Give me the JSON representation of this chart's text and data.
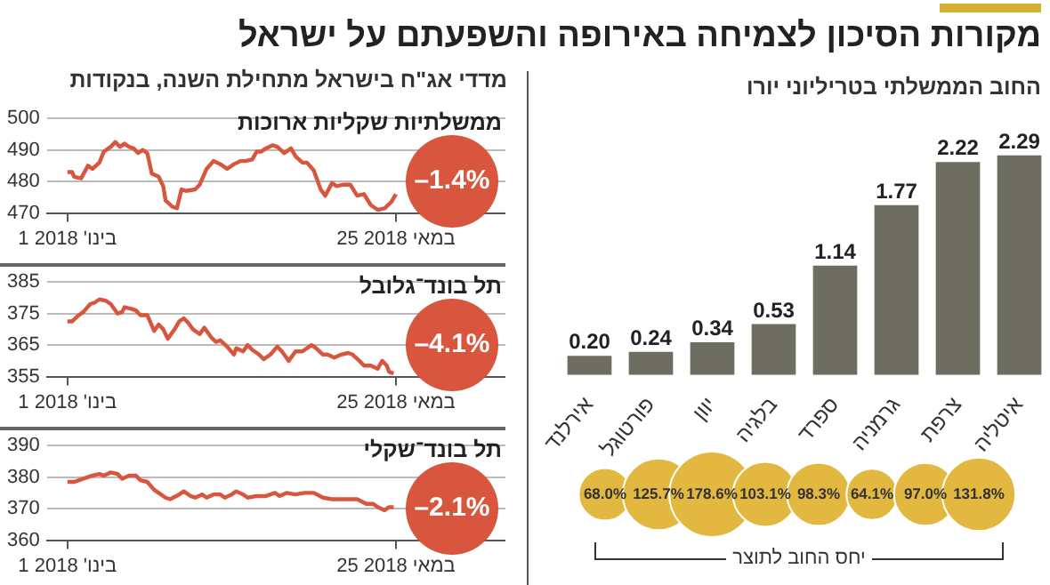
{
  "chart_data": [
    {
      "type": "bar",
      "title": "מקורות הסיכון לצמיחה באירופה והשפעתם על ישראל",
      "subtitle": "החוב הממשלתי בטריליוני יורו",
      "categories": [
        "אירלנד",
        "פורטוגל",
        "יוון",
        "בלגיה",
        "ספרד",
        "גרמניה",
        "צרפת",
        "איטליה"
      ],
      "values": [
        0.2,
        0.24,
        0.34,
        0.53,
        1.14,
        1.77,
        2.22,
        2.29
      ],
      "value_labels": [
        "0.20",
        "0.24",
        "0.34",
        "0.53",
        "1.14",
        "1.77",
        "2.22",
        "2.29"
      ],
      "color": "#6d6d61"
    },
    {
      "type": "other",
      "xlabel": "יחס החוב לתוצר",
      "categories": [
        null,
        null,
        null,
        null,
        null,
        null,
        null,
        null
      ],
      "values": [
        68.0,
        125.7,
        178.6,
        103.1,
        98.3,
        64.1,
        97.0,
        131.8
      ],
      "value_labels": [
        "68.0%",
        "125.7%",
        "178.6%",
        "103.1%",
        "98.3%",
        "64.1%",
        "97.0%",
        "131.8%"
      ],
      "color": "#e2b840"
    },
    {
      "type": "line",
      "title": "ממשלתיות שקליות ארוכות",
      "subtitle": "מדדי אג\"ח בישראל מתחילת השנה, בנקודות",
      "annotations": [
        "–1.4%"
      ],
      "x": [
        "2018-01-01",
        "2018-01-03",
        "2018-01-04",
        "2018-01-07",
        "2018-01-10",
        "2018-01-12",
        "2018-01-15",
        "2018-01-17",
        "2018-01-20",
        "2018-01-22",
        "2018-01-24",
        "2018-01-26",
        "2018-01-28",
        "2018-01-30",
        "2018-02-01",
        "2018-02-03",
        "2018-02-05",
        "2018-02-07",
        "2018-02-10",
        "2018-02-12",
        "2018-02-13",
        "2018-02-16",
        "2018-02-18",
        "2018-02-20",
        "2018-02-22",
        "2018-02-26",
        "2018-02-28",
        "2018-03-03",
        "2018-03-06",
        "2018-03-09",
        "2018-03-12",
        "2018-03-15",
        "2018-03-18",
        "2018-03-20",
        "2018-03-23",
        "2018-03-25",
        "2018-03-27",
        "2018-03-29",
        "2018-04-01",
        "2018-04-03",
        "2018-04-06",
        "2018-04-09",
        "2018-04-11",
        "2018-04-14",
        "2018-04-16",
        "2018-04-19",
        "2018-04-22",
        "2018-04-24",
        "2018-04-27",
        "2018-04-29",
        "2018-05-02",
        "2018-05-05",
        "2018-05-08",
        "2018-05-11",
        "2018-05-14",
        "2018-05-17",
        "2018-05-20",
        "2018-05-23",
        "2018-05-25"
      ],
      "series": [
        {
          "color": "#d8553e",
          "values": [
            483,
            483,
            481.5,
            481,
            485,
            484,
            486,
            489.5,
            491,
            492.5,
            491,
            492,
            491,
            490.5,
            489,
            490,
            489,
            482.5,
            481.5,
            478.5,
            474,
            472,
            471.5,
            477.5,
            477,
            477.5,
            479,
            484,
            486.5,
            485.5,
            484,
            485.5,
            486.5,
            486.5,
            487,
            489.5,
            489.5,
            490.5,
            491.5,
            491,
            489,
            490.5,
            488,
            486,
            486,
            483.5,
            477.5,
            475.5,
            479.5,
            478.5,
            479,
            479,
            475.5,
            476,
            472.5,
            471,
            471.5,
            473.5,
            476
          ]
        }
      ],
      "xlim": [
        "2017-12-23",
        "2018-07-12"
      ],
      "xticks": [
        {
          "value": "2018-01-01",
          "label": "1 בינו' 2018"
        },
        {
          "value": "2018-05-25",
          "label": "25 במאי 2018"
        }
      ],
      "ylim": [
        470,
        500
      ],
      "yticks": [
        470,
        480,
        490,
        500
      ],
      "grid": "y"
    },
    {
      "type": "line",
      "title": "תל בונד־גלובל",
      "annotations": [
        "–4.1%"
      ],
      "x": [
        "2018-01-01",
        "2018-01-03",
        "2018-01-06",
        "2018-01-08",
        "2018-01-11",
        "2018-01-13",
        "2018-01-15",
        "2018-01-18",
        "2018-01-20",
        "2018-01-23",
        "2018-01-25",
        "2018-01-26",
        "2018-01-29",
        "2018-01-31",
        "2018-02-02",
        "2018-02-05",
        "2018-02-08",
        "2018-02-10",
        "2018-02-12",
        "2018-02-14",
        "2018-02-17",
        "2018-02-19",
        "2018-02-21",
        "2018-02-23",
        "2018-02-25",
        "2018-02-28",
        "2018-03-02",
        "2018-03-05",
        "2018-03-07",
        "2018-03-09",
        "2018-03-12",
        "2018-03-15",
        "2018-03-16",
        "2018-03-19",
        "2018-03-21",
        "2018-03-23",
        "2018-03-26",
        "2018-03-28",
        "2018-03-31",
        "2018-04-03",
        "2018-04-05",
        "2018-04-08",
        "2018-04-11",
        "2018-04-14",
        "2018-04-18",
        "2018-04-20",
        "2018-04-23",
        "2018-04-25",
        "2018-04-28",
        "2018-05-01",
        "2018-05-04",
        "2018-05-06",
        "2018-05-09",
        "2018-05-11",
        "2018-05-14",
        "2018-05-17",
        "2018-05-19",
        "2018-05-21",
        "2018-05-22",
        "2018-05-24"
      ],
      "series": [
        {
          "color": "#d8553e",
          "values": [
            372.5,
            372.5,
            374.5,
            375.5,
            378,
            378.5,
            379.5,
            379,
            378,
            375,
            375.5,
            377,
            376.5,
            376,
            374.5,
            374.5,
            369.5,
            371.5,
            370,
            367,
            370,
            372.5,
            373.5,
            372,
            370,
            368.5,
            370.5,
            367.5,
            366,
            366.5,
            364.5,
            362,
            364,
            363,
            365,
            363.5,
            362,
            360.5,
            362,
            364.5,
            363,
            360,
            363,
            363,
            365,
            364,
            362,
            362,
            361,
            362,
            362.5,
            362,
            360,
            358.5,
            358.5,
            357.5,
            360,
            358.5,
            356.5,
            356
          ]
        }
      ],
      "xlim": [
        "2017-12-23",
        "2018-07-12"
      ],
      "xticks": [
        {
          "value": "2018-01-01",
          "label": "1 בינו' 2018"
        },
        {
          "value": "2018-05-25",
          "label": "25 במאי 2018"
        }
      ],
      "ylim": [
        355,
        385
      ],
      "yticks": [
        355,
        365,
        375,
        385
      ],
      "grid": "y"
    },
    {
      "type": "line",
      "title": "תל בונד־שקלי",
      "annotations": [
        "–2.1%"
      ],
      "x": [
        "2018-01-01",
        "2018-01-04",
        "2018-01-08",
        "2018-01-12",
        "2018-01-15",
        "2018-01-17",
        "2018-01-20",
        "2018-01-23",
        "2018-01-25",
        "2018-01-28",
        "2018-01-31",
        "2018-02-02",
        "2018-02-05",
        "2018-02-08",
        "2018-02-10",
        "2018-02-13",
        "2018-02-15",
        "2018-02-19",
        "2018-02-21",
        "2018-02-24",
        "2018-02-26",
        "2018-03-01",
        "2018-03-03",
        "2018-03-06",
        "2018-03-09",
        "2018-03-11",
        "2018-03-14",
        "2018-03-16",
        "2018-03-19",
        "2018-03-21",
        "2018-03-25",
        "2018-03-29",
        "2018-04-02",
        "2018-04-04",
        "2018-04-07",
        "2018-04-11",
        "2018-04-15",
        "2018-04-19",
        "2018-04-23",
        "2018-04-27",
        "2018-04-30",
        "2018-05-04",
        "2018-05-08",
        "2018-05-12",
        "2018-05-15",
        "2018-05-17",
        "2018-05-20",
        "2018-05-22",
        "2018-05-24"
      ],
      "series": [
        {
          "color": "#d8553e",
          "values": [
            378.5,
            378.5,
            379.5,
            380.5,
            381,
            380.5,
            381.5,
            381,
            379.5,
            380.5,
            380.5,
            379,
            378.5,
            376,
            375,
            373.5,
            373,
            374.5,
            375.5,
            374,
            373.5,
            374.5,
            373.5,
            374.5,
            374.5,
            373.5,
            374.5,
            375.5,
            374.5,
            373.5,
            374,
            374,
            375,
            374,
            375,
            374.5,
            375,
            375,
            373.5,
            373,
            373,
            373,
            373,
            371.5,
            371.5,
            370.5,
            369.5,
            370.5,
            370.5
          ]
        }
      ],
      "xlim": [
        "2017-12-23",
        "2018-07-12"
      ],
      "xticks": [
        {
          "value": "2018-01-01",
          "label": "1 בינו' 2018"
        },
        {
          "value": "2018-05-25",
          "label": "25 במאי 2018"
        }
      ],
      "ylim": [
        360,
        390
      ],
      "yticks": [
        360,
        370,
        380,
        390
      ],
      "grid": "y"
    }
  ]
}
